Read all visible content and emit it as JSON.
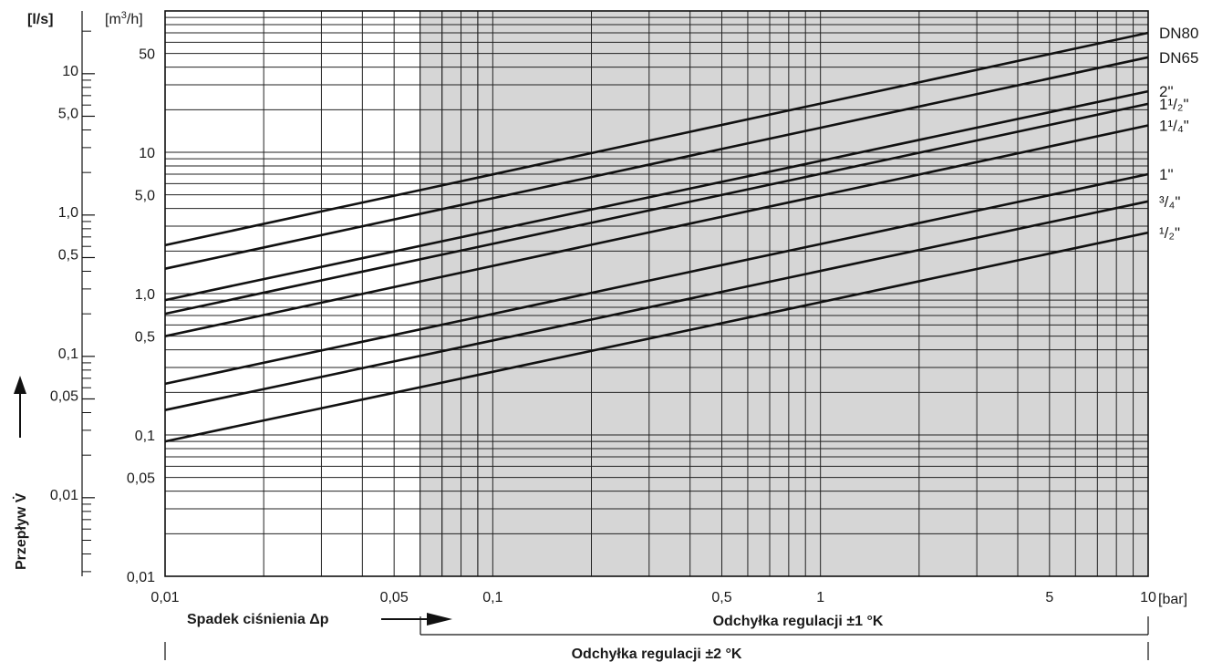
{
  "chart_data": {
    "type": "line",
    "x_scale": "log",
    "y_scale": "log",
    "xlim": [
      0.01,
      10
    ],
    "ylim_m3h": [
      0.01,
      100
    ],
    "ylim_ls": [
      0.00278,
      27.8
    ],
    "grid": true,
    "shaded_region_from_x": 0.06,
    "x_ticks": [
      "0,01",
      "0,05",
      "0,1",
      "0,5",
      "1",
      "5",
      "10"
    ],
    "x_tick_values": [
      0.01,
      0.05,
      0.1,
      0.5,
      1,
      5,
      10
    ],
    "x_unit": "[bar]",
    "y_unit_ls": "[l/s]",
    "y_unit_m3h": "[m3/h]",
    "y_ticks_m3h": [
      "50",
      "10",
      "5,0",
      "1,0",
      "0,5",
      "0,1",
      "0,05",
      "0,01"
    ],
    "y_tick_values_m3h": [
      50,
      10,
      5,
      1,
      0.5,
      0.1,
      0.05,
      0.01
    ],
    "y_ticks_ls": [
      "10",
      "5,0",
      "1,0",
      "0,5",
      "0,1",
      "0,05",
      "0,01"
    ],
    "y_tick_values_ls": [
      10,
      5,
      1,
      0.5,
      0.1,
      0.05,
      0.01
    ],
    "ylabel": "Przepływ V̇",
    "xlabel": "Spadek ciśnienia Δp",
    "annotation_1": "Odchyłka regulacji  ±1 °K",
    "annotation_2": "Odchyłka regulacji  ±2 °K",
    "series": [
      {
        "name": "DN80",
        "x": [
          0.01,
          10
        ],
        "y": [
          2.2,
          70
        ]
      },
      {
        "name": "DN65",
        "x": [
          0.01,
          10
        ],
        "y": [
          1.5,
          47
        ]
      },
      {
        "name": "2\"",
        "x": [
          0.01,
          10
        ],
        "y": [
          0.9,
          27
        ]
      },
      {
        "name": "1¹/₂\"",
        "x": [
          0.01,
          10
        ],
        "y": [
          0.72,
          22
        ]
      },
      {
        "name": "1¹/₄\"",
        "x": [
          0.01,
          10
        ],
        "y": [
          0.5,
          15.5
        ]
      },
      {
        "name": "1\"",
        "x": [
          0.01,
          10
        ],
        "y": [
          0.23,
          7
        ]
      },
      {
        "name": "³/₄\"",
        "x": [
          0.01,
          10
        ],
        "y": [
          0.15,
          4.5
        ]
      },
      {
        "name": "¹/₂\"",
        "x": [
          0.01,
          10
        ],
        "y": [
          0.09,
          2.7
        ]
      }
    ]
  }
}
